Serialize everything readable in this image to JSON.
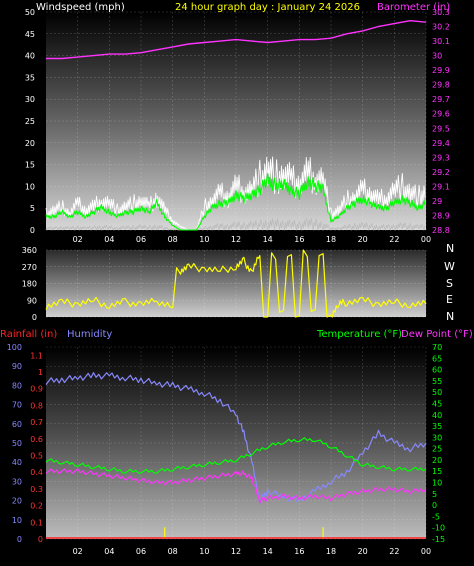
{
  "colors": {
    "windspeed_label": "#ffffff",
    "barometer": "#ff33ff",
    "title": "#ffff00",
    "wind_gust": "#ffffff",
    "wind_avg": "#00ff00",
    "wind_dir": "#ffff00",
    "rainfall": "#ff2222",
    "humidity": "#8888ff",
    "temperature": "#00ff00",
    "dewpoint": "#ff33ff",
    "rain_axis": "#ff3333",
    "hum_axis": "#8888ff",
    "temp_axis": "#00ff00"
  },
  "header": {
    "windspeed_label": "Windspeed (mph)",
    "title": "24 hour graph day : January 24 2026",
    "barometer_label": "Barometer (in)"
  },
  "bottom_header": {
    "rainfall_label": "Rainfall (in)",
    "humidity_label": "Humidity",
    "temperature_label": "Temperature (°F)",
    "dewpoint_label": "Dew Point (°F)"
  },
  "compass_letters": [
    "N",
    "W",
    "S",
    "E",
    "N"
  ],
  "chart_data": [
    {
      "type": "line",
      "name": "wind-barometer",
      "x_tick_labels": [
        "02",
        "04",
        "06",
        "08",
        "10",
        "12",
        "14",
        "16",
        "18",
        "20",
        "22",
        "00"
      ],
      "y_left_ticks": [
        "0",
        "5",
        "10",
        "15",
        "20",
        "25",
        "30",
        "35",
        "40",
        "45",
        "50"
      ],
      "y_right_ticks": [
        "28.8",
        "28.9",
        "29",
        "29.1",
        "29.2",
        "29.3",
        "29.4",
        "29.5",
        "29.6",
        "29.7",
        "29.8",
        "29.9",
        "30",
        "30.1",
        "30.2",
        "30.3"
      ],
      "ylim_left": [
        0,
        50
      ],
      "ylim_right": [
        28.8,
        30.3
      ],
      "series": [
        {
          "name": "Windspeed (mph)",
          "hours": [
            0,
            0.5,
            1,
            1.5,
            2,
            2.5,
            3,
            3.5,
            4,
            4.5,
            5,
            5.5,
            6,
            6.5,
            7,
            7.5,
            8,
            8.5,
            9,
            9.5,
            10,
            10.5,
            11,
            11.5,
            12,
            12.5,
            13,
            13.5,
            14,
            14.5,
            15,
            15.5,
            16,
            16.5,
            17,
            17.5,
            18,
            18.5,
            19,
            19.5,
            20,
            20.5,
            21,
            21.5,
            22,
            22.5,
            23,
            23.5,
            24
          ],
          "gust": [
            5,
            6,
            7,
            5,
            8,
            6,
            7,
            9,
            8,
            6,
            7,
            8,
            9,
            7,
            10,
            6,
            3,
            1,
            0,
            0,
            7,
            9,
            11,
            10,
            13,
            12,
            12,
            16,
            18,
            16,
            17,
            15,
            14,
            17,
            16,
            15,
            5,
            6,
            9,
            10,
            12,
            11,
            9,
            10,
            12,
            13,
            11,
            10,
            12
          ],
          "avg": [
            3,
            3,
            4,
            3,
            4,
            3,
            4,
            5,
            4,
            3,
            4,
            4,
            5,
            4,
            6,
            3,
            1,
            0,
            0,
            0,
            3,
            5,
            6,
            6,
            8,
            7,
            8,
            9,
            11,
            10,
            10,
            9,
            8,
            11,
            10,
            9,
            2,
            3,
            5,
            6,
            7,
            6,
            5,
            5,
            6,
            7,
            6,
            5,
            6
          ]
        },
        {
          "name": "Barometer (in)",
          "hours": [
            0,
            1,
            2,
            3,
            4,
            5,
            6,
            7,
            8,
            9,
            10,
            11,
            12,
            13,
            14,
            15,
            16,
            17,
            18,
            19,
            20,
            21,
            22,
            23,
            24
          ],
          "values": [
            29.98,
            29.98,
            29.99,
            30.0,
            30.01,
            30.01,
            30.02,
            30.04,
            30.06,
            30.08,
            30.09,
            30.1,
            30.11,
            30.1,
            30.09,
            30.1,
            30.11,
            30.11,
            30.12,
            30.15,
            30.17,
            30.2,
            30.22,
            30.24,
            30.23
          ]
        }
      ]
    },
    {
      "type": "line",
      "name": "wind-direction",
      "y_ticks": [
        "0",
        "90",
        "180",
        "270",
        "360"
      ],
      "ylim": [
        0,
        360
      ],
      "series": [
        {
          "name": "Wind Direction",
          "hours": [
            0,
            1,
            2,
            3,
            4,
            5,
            6,
            7,
            8,
            8.5,
            9,
            10,
            11,
            12,
            12.5,
            13,
            13.5,
            14,
            14.5,
            15,
            15.5,
            16,
            16.5,
            17,
            17.5,
            18,
            18.5,
            19,
            20,
            21,
            22,
            23,
            24
          ],
          "values": [
            60,
            80,
            70,
            90,
            60,
            80,
            70,
            85,
            60,
            250,
            270,
            260,
            250,
            270,
            300,
            240,
            330,
            10,
            330,
            20,
            330,
            10,
            340,
            20,
            330,
            10,
            70,
            80,
            90,
            70,
            80,
            65,
            70
          ]
        }
      ]
    },
    {
      "type": "line",
      "name": "temp-humidity-rain",
      "y_rain_ticks": [
        "0",
        "0.1",
        "0.2",
        "0.3",
        "0.4",
        "0.5",
        "0.6",
        "0.7",
        "0.8",
        "0.9",
        "1",
        "1.1"
      ],
      "y_hum_ticks": [
        "0",
        "10",
        "20",
        "30",
        "40",
        "50",
        "60",
        "70",
        "80",
        "90",
        "100"
      ],
      "y_temp_ticks": [
        "-15",
        "-10",
        "-5",
        "0",
        "5",
        "10",
        "15",
        "20",
        "25",
        "30",
        "35",
        "40",
        "45",
        "50",
        "55",
        "60",
        "65",
        "70"
      ],
      "ylim_rain": [
        0,
        1.15
      ],
      "ylim_hum": [
        0,
        100
      ],
      "ylim_temp": [
        -15,
        70
      ],
      "series": [
        {
          "name": "Humidity",
          "hours": [
            0,
            1,
            2,
            3,
            4,
            5,
            6,
            7,
            8,
            9,
            10,
            11,
            12,
            12.5,
            13,
            13.5,
            14,
            15,
            16,
            17,
            18,
            19,
            20,
            21,
            22,
            23,
            24
          ],
          "values": [
            82,
            83,
            84,
            85,
            85,
            84,
            83,
            81,
            80,
            78,
            76,
            72,
            65,
            55,
            40,
            20,
            25,
            22,
            20,
            25,
            30,
            35,
            45,
            55,
            50,
            47,
            50
          ]
        },
        {
          "name": "Temperature (°F)",
          "hours": [
            0,
            1,
            2,
            3,
            4,
            5,
            6,
            7,
            8,
            9,
            10,
            11,
            12,
            13,
            14,
            15,
            16,
            17,
            18,
            19,
            20,
            21,
            22,
            23,
            24
          ],
          "values": [
            20,
            19,
            18,
            17,
            16,
            15,
            15,
            15,
            16,
            17,
            18,
            19,
            20,
            23,
            26,
            28,
            29,
            29,
            26,
            22,
            18,
            17,
            16,
            16,
            16
          ]
        },
        {
          "name": "Dew Point (°F)",
          "hours": [
            0,
            1,
            2,
            3,
            4,
            5,
            6,
            7,
            8,
            9,
            10,
            11,
            12,
            12.5,
            13,
            13.5,
            14,
            15,
            16,
            17,
            18,
            19,
            20,
            21,
            22,
            23,
            24
          ],
          "values": [
            15,
            15,
            15,
            14,
            13,
            12,
            11,
            10,
            10,
            11,
            12,
            13,
            14,
            14,
            12,
            2,
            3,
            4,
            3,
            4,
            3,
            5,
            6,
            7,
            7,
            6,
            7
          ]
        },
        {
          "name": "Rainfall (in)",
          "hours": [
            7.5,
            17.5
          ],
          "values": [
            0.07,
            0.07
          ]
        }
      ]
    }
  ]
}
